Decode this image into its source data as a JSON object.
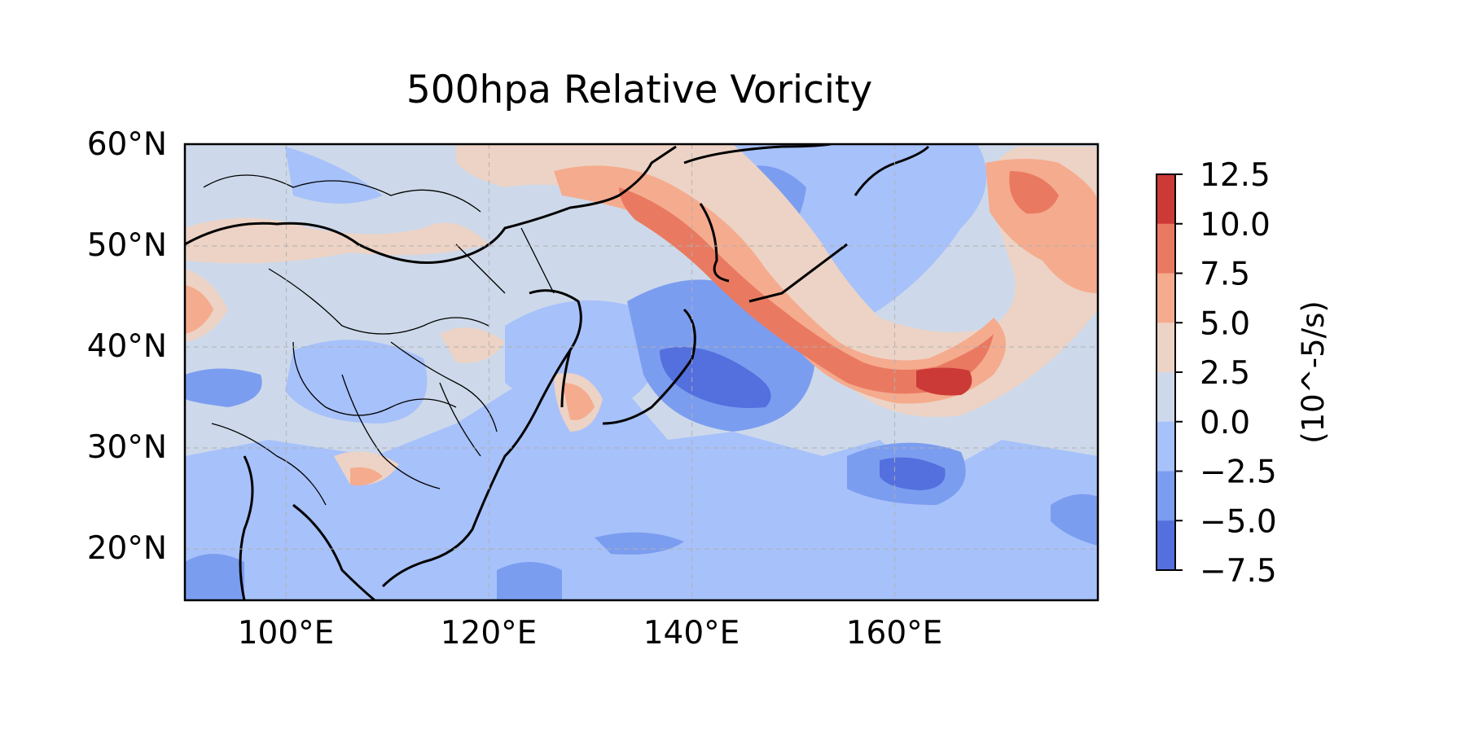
{
  "title": "500hpa Relative Voricity",
  "colorbar": {
    "label": "(10^-5/s)",
    "ticks": [
      "12.5",
      "10.0",
      "7.5",
      "5.0",
      "2.5",
      "0.0",
      "−2.5",
      "−5.0",
      "−7.5"
    ],
    "levels": [
      12.5,
      10.0,
      7.5,
      5.0,
      2.5,
      0.0,
      -2.5,
      -5.0,
      -7.5
    ],
    "colors": [
      "#cb3a36",
      "#e97a61",
      "#f5ab8e",
      "#ecd3c5",
      "#cdd9ea",
      "#a7c1fa",
      "#7b9df0",
      "#5470de"
    ]
  },
  "axes": {
    "lon_ticks": [
      "100°E",
      "120°E",
      "140°E",
      "160°E"
    ],
    "lat_ticks": [
      "60°N",
      "50°N",
      "40°N",
      "30°N",
      "20°N"
    ],
    "lon_range": [
      90,
      180
    ],
    "lat_range": [
      15,
      60
    ],
    "grid": "dashed"
  },
  "chart_data": {
    "type": "heatmap",
    "title": "500hpa Relative Voricity",
    "x_range": [
      90,
      180
    ],
    "y_range": [
      15,
      60
    ],
    "x_ticks": [
      100,
      120,
      140,
      160
    ],
    "y_ticks": [
      20,
      30,
      40,
      50,
      60
    ],
    "colorbar_label": "(10^-5/s)",
    "colorbar_levels": [
      -7.5,
      -5.0,
      -2.5,
      0.0,
      2.5,
      5.0,
      7.5,
      10.0,
      12.5
    ],
    "features": [
      {
        "name": "positive vorticity band",
        "max": 12.5,
        "path_lon": [
          128,
          145,
          158,
          166
        ],
        "path_lat": [
          55,
          50,
          42,
          37
        ]
      },
      {
        "name": "positive center north-east",
        "lon": 172,
        "lat": 54,
        "max": 10.0
      },
      {
        "name": "negative center east of Japan",
        "lon": 143,
        "lat": 36,
        "min": -7.5
      },
      {
        "name": "negative center central Pacific",
        "lon": 162,
        "lat": 28,
        "min": -7.5
      }
    ]
  }
}
